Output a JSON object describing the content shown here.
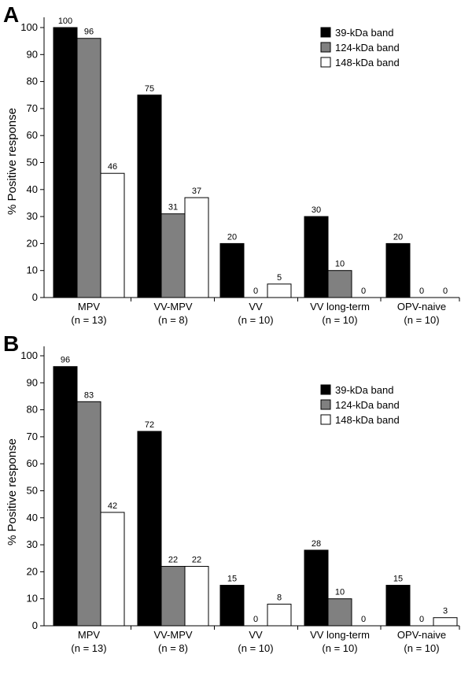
{
  "chart_data": [
    {
      "type": "bar",
      "panel": "A",
      "ylabel": "% Positive response",
      "ylim": [
        0,
        105
      ],
      "yticks": [
        0,
        10,
        20,
        30,
        40,
        50,
        60,
        70,
        80,
        90,
        100
      ],
      "categories": [
        "MPV",
        "VV-MPV",
        "VV",
        "VV long-term",
        "OPV-naive"
      ],
      "category_counts": [
        "(n = 13)",
        "(n = 8)",
        "(n = 10)",
        "(n = 10)",
        "(n = 10)"
      ],
      "legend_position": "top-right",
      "series": [
        {
          "name": "39-kDa band",
          "color": "#000000",
          "values": [
            100,
            75,
            20,
            30,
            20
          ]
        },
        {
          "name": "124-kDa band",
          "color": "#808080",
          "values": [
            96,
            31,
            0,
            10,
            0
          ]
        },
        {
          "name": "148-kDa band",
          "color": "#ffffff",
          "values": [
            46,
            37,
            5,
            0,
            0
          ]
        }
      ]
    },
    {
      "type": "bar",
      "panel": "B",
      "ylabel": "% Positive response",
      "ylim": [
        0,
        105
      ],
      "yticks": [
        0,
        10,
        20,
        30,
        40,
        50,
        60,
        70,
        80,
        90,
        100
      ],
      "categories": [
        "MPV",
        "VV-MPV",
        "VV",
        "VV long-term",
        "OPV-naive"
      ],
      "category_counts": [
        "(n = 13)",
        "(n = 8)",
        "(n = 10)",
        "(n = 10)",
        "(n = 10)"
      ],
      "legend_position": "top-right",
      "series": [
        {
          "name": "39-kDa band",
          "color": "#000000",
          "values": [
            96,
            72,
            15,
            28,
            15
          ]
        },
        {
          "name": "124-kDa band",
          "color": "#808080",
          "values": [
            83,
            22,
            0,
            10,
            0
          ]
        },
        {
          "name": "148-kDa band",
          "color": "#ffffff",
          "values": [
            42,
            22,
            8,
            0,
            3
          ]
        }
      ]
    }
  ]
}
